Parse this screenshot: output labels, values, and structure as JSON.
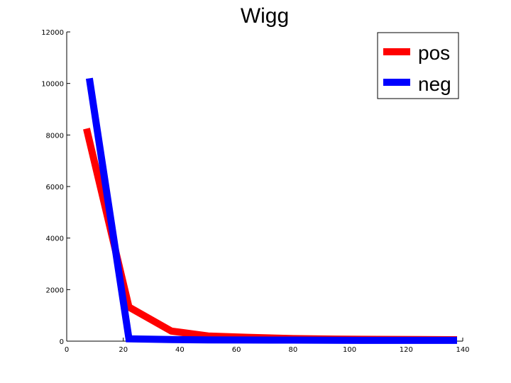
{
  "chart_data": {
    "type": "line",
    "title": "Wigg",
    "xlabel": "",
    "ylabel": "",
    "xlim": [
      0,
      140
    ],
    "ylim": [
      0,
      12000
    ],
    "xticks": [
      0,
      20,
      40,
      60,
      80,
      100,
      120,
      140
    ],
    "yticks": [
      0,
      2000,
      4000,
      6000,
      8000,
      10000,
      12000
    ],
    "grid": false,
    "legend_position": "top-right",
    "series": [
      {
        "name": "pos",
        "color": "#ff0000",
        "x": [
          7,
          22,
          37,
          50,
          64,
          80,
          95,
          110,
          125,
          138
        ],
        "y": [
          8250,
          1320,
          390,
          200,
          150,
          100,
          80,
          70,
          60,
          55
        ]
      },
      {
        "name": "neg",
        "color": "#0000ff",
        "x": [
          8,
          22,
          37,
          50,
          64,
          80,
          95,
          110,
          125,
          138
        ],
        "y": [
          10200,
          90,
          60,
          50,
          45,
          40,
          35,
          30,
          30,
          30
        ]
      }
    ]
  }
}
